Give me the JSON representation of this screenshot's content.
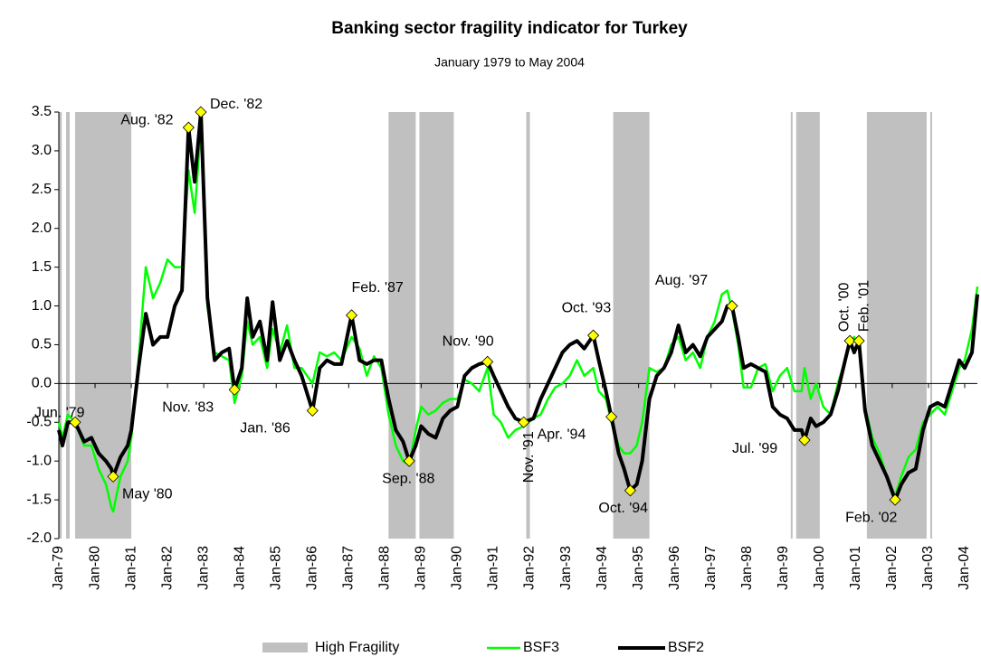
{
  "chart_data": {
    "type": "line",
    "title": "Banking sector fragility indicator for Turkey",
    "subtitle": "January 1979 to May 2004",
    "xlim": [
      1979,
      2004.35
    ],
    "xticks": [
      {
        "value": 1979,
        "label": "Jan-79"
      },
      {
        "value": 1980,
        "label": "Jan-80"
      },
      {
        "value": 1981,
        "label": "Jan-81"
      },
      {
        "value": 1982,
        "label": "Jan-82"
      },
      {
        "value": 1983,
        "label": "Jan-83"
      },
      {
        "value": 1984,
        "label": "Jan-84"
      },
      {
        "value": 1985,
        "label": "Jan-85"
      },
      {
        "value": 1986,
        "label": "Jan-86"
      },
      {
        "value": 1987,
        "label": "Jan-87"
      },
      {
        "value": 1988,
        "label": "Jan-88"
      },
      {
        "value": 1989,
        "label": "Jan-89"
      },
      {
        "value": 1990,
        "label": "Jan-90"
      },
      {
        "value": 1991,
        "label": "Jan-91"
      },
      {
        "value": 1992,
        "label": "Jan-92"
      },
      {
        "value": 1993,
        "label": "Jan-93"
      },
      {
        "value": 1994,
        "label": "Jan-94"
      },
      {
        "value": 1995,
        "label": "Jan-95"
      },
      {
        "value": 1996,
        "label": "Jan-96"
      },
      {
        "value": 1997,
        "label": "Jan-97"
      },
      {
        "value": 1998,
        "label": "Jan-98"
      },
      {
        "value": 1999,
        "label": "Jan-99"
      },
      {
        "value": 2000,
        "label": "Jan-00"
      },
      {
        "value": 2001,
        "label": "Jan-01"
      },
      {
        "value": 2002,
        "label": "Jan-02"
      },
      {
        "value": 2003,
        "label": "Jan-03"
      },
      {
        "value": 2004,
        "label": "Jan-04"
      }
    ],
    "ylim": [
      -2.0,
      3.5
    ],
    "yticks": [
      {
        "value": -2,
        "label": "-2.0"
      },
      {
        "value": -1.5,
        "label": "-1.5"
      },
      {
        "value": -1,
        "label": "-1.0"
      },
      {
        "value": -0.5,
        "label": "-0.5"
      },
      {
        "value": 0,
        "label": "0.0"
      },
      {
        "value": 0.5,
        "label": "0.5"
      },
      {
        "value": 1,
        "label": "1.0"
      },
      {
        "value": 1.5,
        "label": "1.5"
      },
      {
        "value": 2,
        "label": "2.0"
      },
      {
        "value": 2.5,
        "label": "2.5"
      },
      {
        "value": 3,
        "label": "3.0"
      },
      {
        "value": 3.5,
        "label": "3.5"
      }
    ],
    "shading": {
      "name": "High Fragility",
      "color": "#c0c0c0",
      "ranges": [
        [
          1979.0,
          1979.08
        ],
        [
          1979.2,
          1979.3
        ],
        [
          1979.45,
          1981.0
        ],
        [
          1988.1,
          1988.85
        ],
        [
          1988.95,
          1989.9
        ],
        [
          1991.9,
          1992.0
        ],
        [
          1994.3,
          1995.3
        ],
        [
          1999.2,
          1999.25
        ],
        [
          1999.35,
          2000.0
        ],
        [
          2001.3,
          2002.95
        ],
        [
          2003.05,
          2003.1
        ]
      ]
    },
    "x": [
      1979.0,
      1979.1,
      1979.25,
      1979.45,
      1979.7,
      1979.9,
      1980.1,
      1980.3,
      1980.45,
      1980.5,
      1980.7,
      1980.9,
      1981.0,
      1981.2,
      1981.4,
      1981.6,
      1981.8,
      1982.0,
      1982.2,
      1982.4,
      1982.58,
      1982.75,
      1982.92,
      1983.1,
      1983.3,
      1983.5,
      1983.7,
      1983.85,
      1984.05,
      1984.2,
      1984.35,
      1984.55,
      1984.75,
      1984.9,
      1985.1,
      1985.3,
      1985.5,
      1985.7,
      1986.0,
      1986.2,
      1986.4,
      1986.6,
      1986.8,
      1987.08,
      1987.3,
      1987.5,
      1987.7,
      1987.9,
      1988.1,
      1988.3,
      1988.5,
      1988.67,
      1988.85,
      1989.0,
      1989.2,
      1989.4,
      1989.6,
      1989.8,
      1990.0,
      1990.2,
      1990.4,
      1990.6,
      1990.83,
      1991.0,
      1991.2,
      1991.4,
      1991.6,
      1991.83,
      1992.1,
      1992.3,
      1992.5,
      1992.7,
      1992.9,
      1993.1,
      1993.3,
      1993.5,
      1993.75,
      1993.9,
      1994.1,
      1994.25,
      1994.45,
      1994.6,
      1994.77,
      1994.95,
      1995.1,
      1995.3,
      1995.5,
      1995.7,
      1995.9,
      1996.1,
      1996.3,
      1996.5,
      1996.7,
      1996.9,
      1997.1,
      1997.3,
      1997.45,
      1997.58,
      1997.75,
      1997.9,
      1998.1,
      1998.3,
      1998.5,
      1998.7,
      1998.9,
      1999.1,
      1999.3,
      1999.5,
      1999.58,
      1999.75,
      1999.9,
      2000.1,
      2000.3,
      2000.5,
      2000.7,
      2000.83,
      2000.95,
      2001.08,
      2001.25,
      2001.45,
      2001.65,
      2001.85,
      2002.08,
      2002.25,
      2002.45,
      2002.65,
      2002.85,
      2003.05,
      2003.25,
      2003.45,
      2003.65,
      2003.85,
      2004.0,
      2004.2,
      2004.35
    ],
    "series": [
      {
        "name": "BSF3",
        "color": "#00ff00",
        "width": 2.5,
        "values": [
          -0.5,
          -0.7,
          -0.4,
          -0.5,
          -0.8,
          -0.8,
          -1.1,
          -1.3,
          -1.6,
          -1.65,
          -1.2,
          -1.0,
          -0.7,
          0.3,
          1.5,
          1.1,
          1.3,
          1.6,
          1.5,
          1.5,
          2.75,
          2.2,
          3.3,
          1.0,
          0.4,
          0.35,
          0.3,
          -0.25,
          0.1,
          0.8,
          0.5,
          0.6,
          0.2,
          0.7,
          0.4,
          0.75,
          0.2,
          0.2,
          0.0,
          0.4,
          0.35,
          0.4,
          0.3,
          0.6,
          0.45,
          0.1,
          0.35,
          0.2,
          -0.4,
          -0.8,
          -1.0,
          -1.05,
          -0.6,
          -0.3,
          -0.4,
          -0.35,
          -0.25,
          -0.2,
          -0.2,
          0.05,
          0.0,
          -0.1,
          0.2,
          -0.4,
          -0.5,
          -0.7,
          -0.6,
          -0.55,
          -0.45,
          -0.4,
          -0.2,
          -0.05,
          0.0,
          0.1,
          0.3,
          0.1,
          0.2,
          -0.1,
          -0.2,
          -0.5,
          -0.8,
          -0.9,
          -0.9,
          -0.8,
          -0.5,
          0.2,
          0.15,
          0.2,
          0.5,
          0.6,
          0.3,
          0.4,
          0.2,
          0.6,
          0.8,
          1.15,
          1.2,
          0.95,
          0.5,
          -0.05,
          -0.05,
          0.2,
          0.25,
          -0.1,
          0.1,
          0.2,
          -0.1,
          -0.1,
          0.2,
          -0.2,
          0.0,
          -0.3,
          -0.4,
          0.0,
          0.3,
          0.5,
          0.6,
          0.45,
          -0.3,
          -0.7,
          -0.9,
          -1.2,
          -1.45,
          -1.2,
          -0.95,
          -0.85,
          -0.5,
          -0.4,
          -0.3,
          -0.4,
          -0.1,
          0.2,
          0.3,
          0.7,
          1.25
        ]
      },
      {
        "name": "BSF2",
        "color": "#000000",
        "width": 4,
        "values": [
          -0.6,
          -0.8,
          -0.5,
          -0.5,
          -0.75,
          -0.7,
          -0.9,
          -1.0,
          -1.1,
          -1.2,
          -0.95,
          -0.8,
          -0.6,
          0.2,
          0.9,
          0.5,
          0.6,
          0.6,
          1.0,
          1.2,
          3.3,
          2.6,
          3.5,
          1.1,
          0.3,
          0.4,
          0.45,
          -0.08,
          0.2,
          1.1,
          0.6,
          0.8,
          0.3,
          1.05,
          0.3,
          0.55,
          0.3,
          0.1,
          -0.35,
          0.2,
          0.3,
          0.25,
          0.25,
          0.88,
          0.3,
          0.25,
          0.3,
          0.3,
          -0.2,
          -0.6,
          -0.75,
          -1.0,
          -0.8,
          -0.55,
          -0.65,
          -0.7,
          -0.45,
          -0.35,
          -0.3,
          0.1,
          0.2,
          0.25,
          0.28,
          0.1,
          -0.1,
          -0.3,
          -0.45,
          -0.5,
          -0.45,
          -0.2,
          0.0,
          0.2,
          0.4,
          0.5,
          0.55,
          0.45,
          0.62,
          0.3,
          -0.1,
          -0.43,
          -0.9,
          -1.1,
          -1.38,
          -1.3,
          -1.0,
          -0.2,
          0.1,
          0.2,
          0.4,
          0.75,
          0.4,
          0.5,
          0.35,
          0.6,
          0.7,
          0.8,
          1.0,
          1.0,
          0.6,
          0.2,
          0.25,
          0.2,
          0.15,
          -0.3,
          -0.4,
          -0.45,
          -0.6,
          -0.6,
          -0.73,
          -0.45,
          -0.55,
          -0.5,
          -0.4,
          -0.1,
          0.3,
          0.55,
          0.4,
          0.55,
          -0.35,
          -0.8,
          -1.0,
          -1.2,
          -1.5,
          -1.3,
          -1.15,
          -1.1,
          -0.6,
          -0.3,
          -0.25,
          -0.3,
          0.0,
          0.3,
          0.2,
          0.4,
          1.15
        ]
      }
    ],
    "marker_color": "#ffff00",
    "annotations": [
      {
        "label": "Jun. '79",
        "x": 1979.45,
        "y": -0.5
      },
      {
        "label": "May '80",
        "x": 1980.5,
        "y": -1.2
      },
      {
        "label": "Aug. '82",
        "x": 1982.58,
        "y": 3.3
      },
      {
        "label": "Dec. '82",
        "x": 1982.92,
        "y": 3.5
      },
      {
        "label": "Nov. '83",
        "x": 1983.85,
        "y": -0.08
      },
      {
        "label": "Jan. '86",
        "x": 1986.0,
        "y": -0.35
      },
      {
        "label": "Feb. '87",
        "x": 1987.08,
        "y": 0.88
      },
      {
        "label": "Sep. '88",
        "x": 1988.67,
        "y": -1.0
      },
      {
        "label": "Nov. '90",
        "x": 1990.83,
        "y": 0.28
      },
      {
        "label": "Nov. '91",
        "x": 1991.83,
        "y": -0.5
      },
      {
        "label": "Oct. '93",
        "x": 1993.75,
        "y": 0.62
      },
      {
        "label": "Apr. '94",
        "x": 1994.25,
        "y": -0.43
      },
      {
        "label": "Oct. '94",
        "x": 1994.77,
        "y": -1.38
      },
      {
        "label": "Aug. '97",
        "x": 1997.58,
        "y": 1.0
      },
      {
        "label": "Jul. '99",
        "x": 1999.58,
        "y": -0.73
      },
      {
        "label": "Oct. '00",
        "x": 2000.83,
        "y": 0.55
      },
      {
        "label": "Feb. '01",
        "x": 2001.08,
        "y": 0.55
      },
      {
        "label": "Feb. '02",
        "x": 2002.08,
        "y": -1.5
      }
    ]
  }
}
